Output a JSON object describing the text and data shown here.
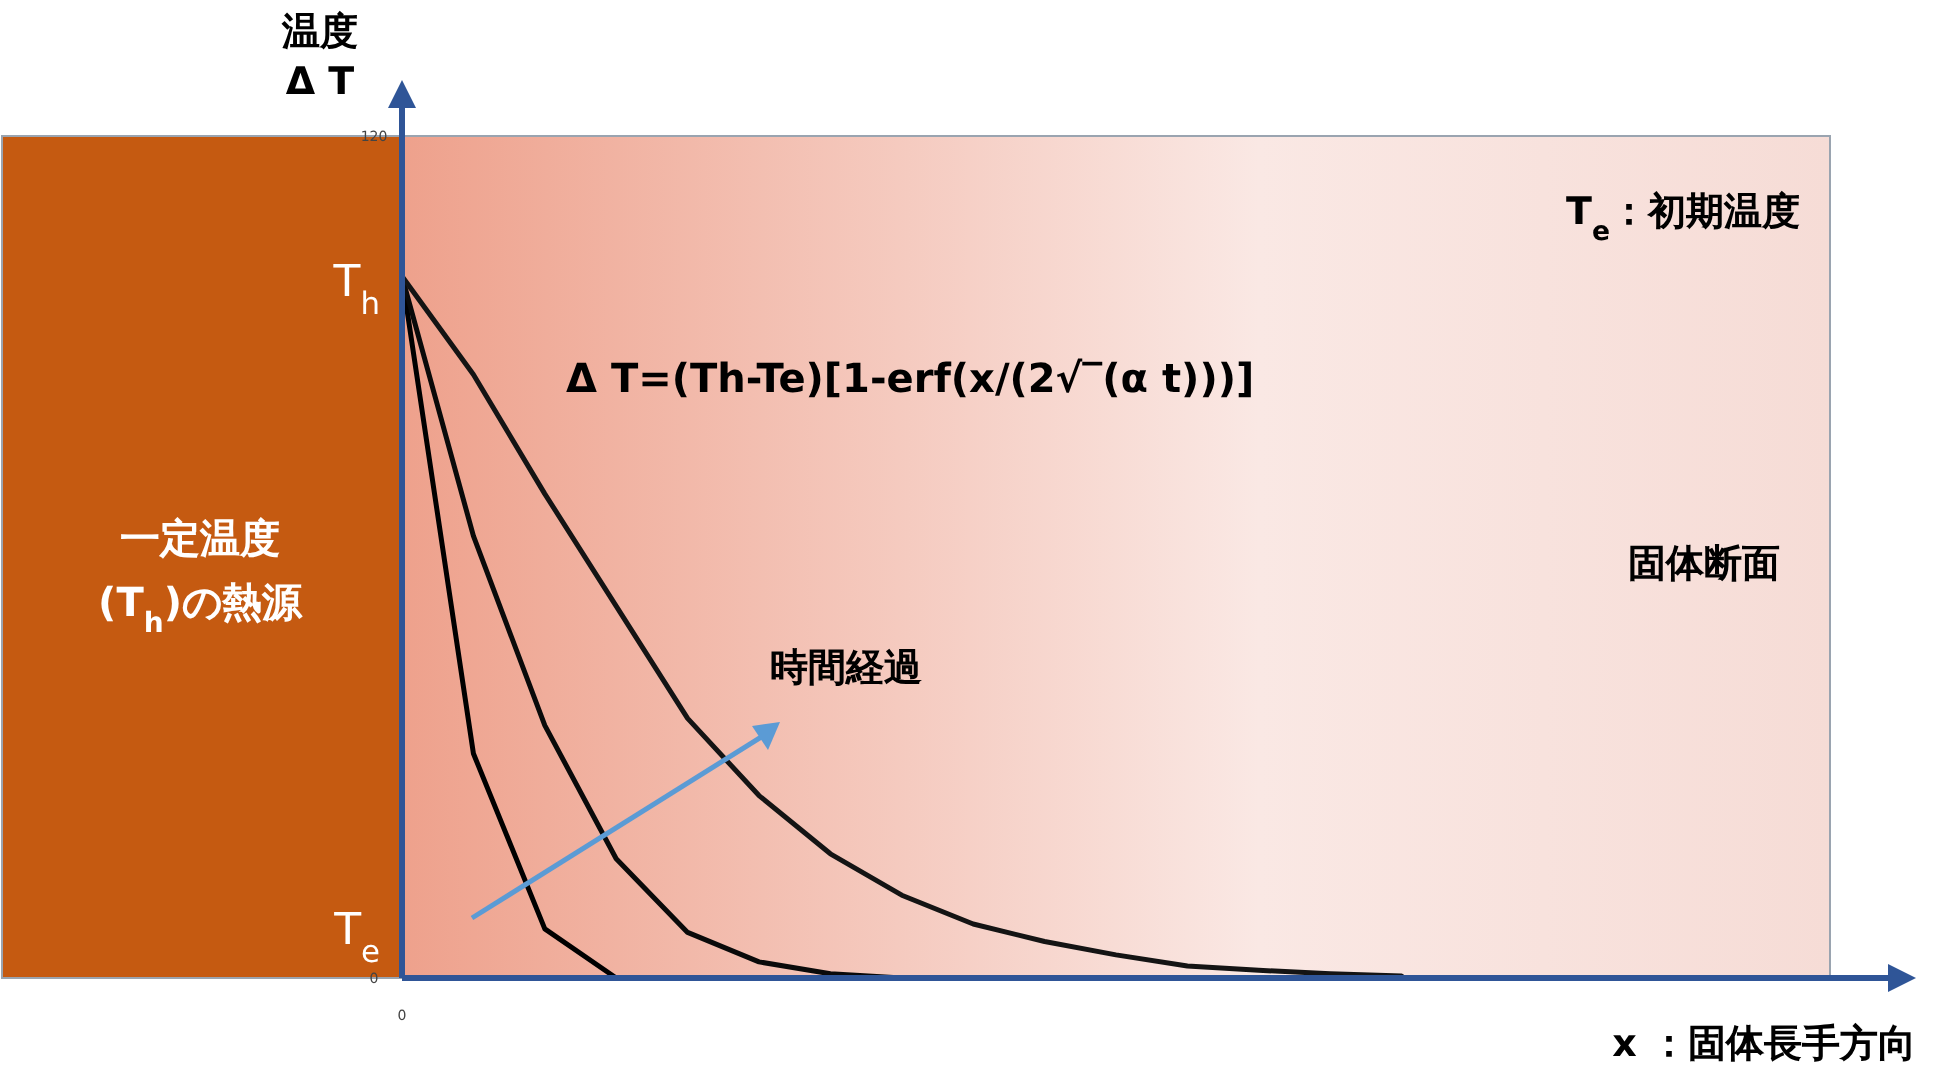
{
  "chart_data": {
    "type": "line",
    "ylabel": "温度\nΔ T",
    "xlabel": "x ：固体長手方向",
    "categories": [
      "0",
      null,
      null,
      null,
      null,
      null,
      null,
      null,
      null,
      null,
      null,
      null,
      null,
      null,
      null,
      null,
      null,
      null,
      null,
      null,
      null
    ],
    "ylim": [
      0,
      120
    ],
    "yticks": [
      0,
      120
    ],
    "series": [
      {
        "color": "#000000",
        "values": [
          100,
          32,
          7,
          0,
          null,
          null,
          null,
          null,
          null,
          null,
          null,
          null,
          null,
          null,
          null,
          null,
          null,
          null,
          null,
          null,
          null
        ]
      },
      {
        "color": "#0a0a0a",
        "values": [
          100,
          63,
          36,
          17,
          6.5,
          2.3,
          0.6,
          0,
          null,
          null,
          null,
          null,
          null,
          null,
          null,
          null,
          null,
          null,
          null,
          null,
          null
        ]
      },
      {
        "color": "#141414",
        "values": [
          100,
          86,
          69,
          53,
          37,
          26,
          17.7,
          11.8,
          7.7,
          5.2,
          3.3,
          1.7,
          1.1,
          0.6,
          0.3,
          null,
          null,
          null,
          null,
          null,
          null
        ]
      }
    ],
    "annotations": [
      "T$_{h}$",
      "T$_{e}$",
      "T$_{e}$：初期温度",
      "Δ T=(Th-Te)[1-erf(x/(2√‾(α t)))]",
      "固体断面",
      "時間経過",
      "一定温度\n(T$_{h}$)の熱源"
    ]
  }
}
